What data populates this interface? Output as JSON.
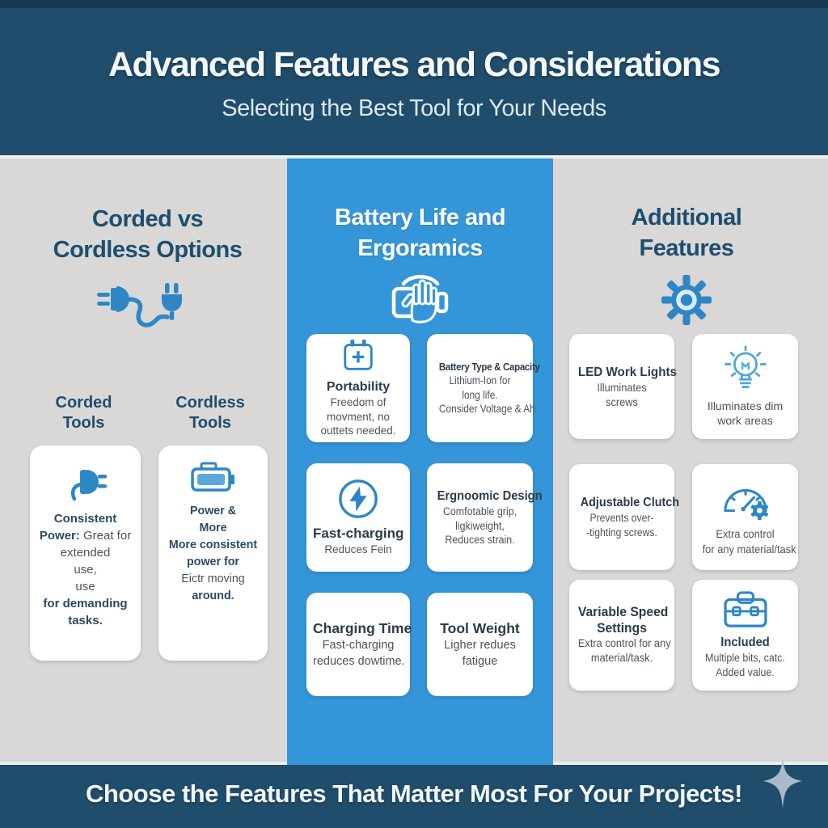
{
  "palette": {
    "header_bg": "#1f4d6b",
    "header_top_strip": "#17394f",
    "accent_blue": "#3496d8",
    "page_bg": "#d9d8d6",
    "card_bg": "#ffffff",
    "navy_text": "#1d4e70",
    "card_title_text": "#2b3c49",
    "card_body_text": "#4d535a",
    "icon_blue": "#2e86c5",
    "icon_light_blue": "#4fa8da",
    "sparkle": "#a9bac8"
  },
  "header": {
    "title": "Advanced Features and Considerations",
    "subtitle": "Selecting the Best Tool for Your Needs"
  },
  "left": {
    "title_line1": "Corded vs",
    "title_line2": "Cordless Options",
    "icon": "plug-and-cord-icon",
    "corded_label": "Corded Tools",
    "cordless_label": "Cordless Tools",
    "cards": [
      {
        "icon": "plug-icon",
        "lines": [
          {
            "t": "Consistent",
            "b": true
          },
          {
            "pre": "Power:",
            "t": " Great for"
          },
          {
            "t": "extended"
          },
          {
            "t": "use,"
          },
          {
            "t": "use"
          },
          {
            "t": "for demanding",
            "b": true
          },
          {
            "t": "tasks.",
            "b": true
          }
        ]
      },
      {
        "icon": "battery-icon",
        "lines": [
          {
            "t": "Power  &",
            "b": true
          },
          {
            "t": "More",
            "b": true
          },
          {
            "t": "More consistent",
            "b": true
          },
          {
            "t": "power for",
            "b": true
          },
          {
            "t": "Eictr moving"
          },
          {
            "t": "around.",
            "b": true
          }
        ]
      }
    ]
  },
  "middle": {
    "title_line1": "Battery Life and",
    "title_line2": "Ergoramics",
    "icon": "hand-grip-icon",
    "cards": [
      {
        "icon": "calendar-plus-icon",
        "lines": [
          {
            "t": "Portability",
            "b": true
          },
          {
            "t": "Freedom of"
          },
          {
            "t": "movment, no"
          },
          {
            "t": "outtets needed."
          }
        ]
      },
      {
        "lines": [
          {
            "t": "Battery Type & Capacity",
            "b": true
          },
          {
            "t": "Lithium-Ion for"
          },
          {
            "t": "long life."
          },
          {
            "t": "Consider Voltage & Ah"
          }
        ]
      },
      {
        "icon": "lightning-circle-icon",
        "lines": [
          {
            "t": "Fast-charging",
            "b": true
          },
          {
            "t": "Reduces Fein"
          }
        ]
      },
      {
        "lines": [
          {
            "t": "Ergnoomic Design",
            "b": true
          },
          {
            "t": "Comfotable grip,"
          },
          {
            "t": "ligkiweight,"
          },
          {
            "t": "Reduces strain."
          }
        ]
      },
      {
        "lines": [
          {
            "t": "Charging Time",
            "b": true
          },
          {
            "t": "Fast-charging"
          },
          {
            "t": "reduces dowtime."
          }
        ]
      },
      {
        "lines": [
          {
            "t": "Tool Weight",
            "b": true
          },
          {
            "t": "Ligher redues"
          },
          {
            "t": "fatigue"
          }
        ]
      }
    ]
  },
  "right": {
    "title_line1": "Additional",
    "title_line2": "Features",
    "icon": "gear-icon",
    "cards": [
      {
        "lines": [
          {
            "t": "LED Work Lights",
            "b": true
          },
          {
            "t": "Illuminates"
          },
          {
            "t": "screws"
          }
        ]
      },
      {
        "icon": "lightbulb-icon",
        "lines": [
          {
            "t": "Illuminates dim"
          },
          {
            "t": "work areas"
          }
        ]
      },
      {
        "lines": [
          {
            "t": "Adjustable Clutch",
            "b": true
          },
          {
            "t": "Prevents over-"
          },
          {
            "t": "-tighting screws."
          }
        ]
      },
      {
        "icon": "gauge-gear-icon",
        "lines": [
          {
            "t": "Extra control"
          },
          {
            "t": "for any material/task"
          }
        ]
      },
      {
        "lines": [
          {
            "t": "Variable Speed",
            "b": true
          },
          {
            "t": "Settings",
            "b": true
          },
          {
            "t": "Extra control for any"
          },
          {
            "t": "material/task."
          }
        ]
      },
      {
        "icon": "toolbox-icon",
        "lines": [
          {
            "t": "Included",
            "b": true
          },
          {
            "t": "Multiple bits, catc."
          },
          {
            "t": "Added value."
          }
        ]
      }
    ]
  },
  "footer": {
    "text": "Choose the Features That Matter Most For Your Projects!",
    "sparkle": "sparkle-icon"
  }
}
